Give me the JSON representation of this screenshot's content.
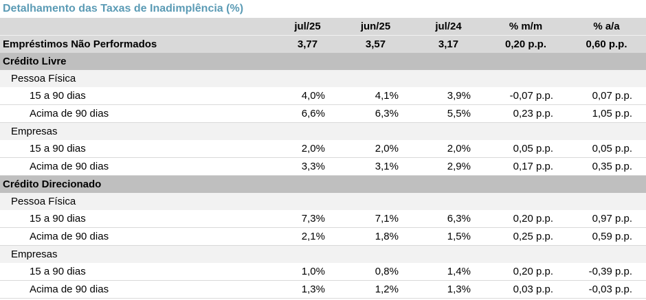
{
  "title": "Detalhamento das Taxas de Inadimplência (%)",
  "columns": [
    "jul/25",
    "jun/25",
    "jul/24",
    "% m/m",
    "% a/a"
  ],
  "total": {
    "label": "Empréstimos Não Performados",
    "values": [
      "3,77",
      "3,57",
      "3,17",
      "0,20 p.p.",
      "0,60 p.p."
    ]
  },
  "sections": [
    {
      "label": "Crédito Livre",
      "groups": [
        {
          "label": "Pessoa Física",
          "rows": [
            {
              "label": "15 a 90 dias",
              "values": [
                "4,0%",
                "4,1%",
                "3,9%",
                "-0,07 p.p.",
                "0,07 p.p."
              ]
            },
            {
              "label": "Acima de 90 dias",
              "values": [
                "6,6%",
                "6,3%",
                "5,5%",
                "0,23 p.p.",
                "1,05 p.p."
              ]
            }
          ]
        },
        {
          "label": "Empresas",
          "rows": [
            {
              "label": "15 a 90 dias",
              "values": [
                "2,0%",
                "2,0%",
                "2,0%",
                "0,05 p.p.",
                "0,05 p.p."
              ]
            },
            {
              "label": "Acima de 90 dias",
              "values": [
                "3,3%",
                "3,1%",
                "2,9%",
                "0,17 p.p.",
                "0,35 p.p."
              ]
            }
          ]
        }
      ]
    },
    {
      "label": "Crédito Direcionado",
      "groups": [
        {
          "label": "Pessoa Física",
          "rows": [
            {
              "label": "15 a 90 dias",
              "values": [
                "7,3%",
                "7,1%",
                "6,3%",
                "0,20 p.p.",
                "0,97 p.p."
              ]
            },
            {
              "label": "Acima de 90 dias",
              "values": [
                "2,1%",
                "1,8%",
                "1,5%",
                "0,25 p.p.",
                "0,59 p.p."
              ]
            }
          ]
        },
        {
          "label": "Empresas",
          "rows": [
            {
              "label": "15 a 90 dias",
              "values": [
                "1,0%",
                "0,8%",
                "1,4%",
                "0,20 p.p.",
                "-0,39 p.p."
              ]
            },
            {
              "label": "Acima de 90 dias",
              "values": [
                "1,3%",
                "1,2%",
                "1,3%",
                "0,03 p.p.",
                "-0,03 p.p."
              ]
            }
          ]
        }
      ]
    }
  ]
}
